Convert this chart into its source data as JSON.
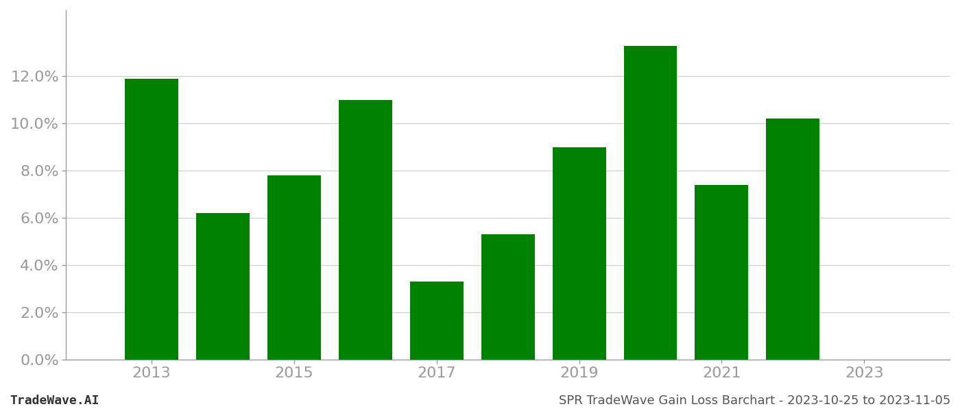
{
  "years": [
    2013,
    2014,
    2015,
    2016,
    2017,
    2018,
    2019,
    2020,
    2021,
    2022
  ],
  "values": [
    0.119,
    0.062,
    0.078,
    0.11,
    0.033,
    0.053,
    0.09,
    0.133,
    0.074,
    0.102
  ],
  "bar_color": "#008000",
  "background_color": "#ffffff",
  "grid_color": "#cccccc",
  "ylim": [
    0,
    0.148
  ],
  "yticks": [
    0.0,
    0.02,
    0.04,
    0.06,
    0.08,
    0.1,
    0.12
  ],
  "xtick_labels": [
    "2013",
    "2015",
    "2017",
    "2019",
    "2021",
    "2023"
  ],
  "xtick_positions": [
    2013,
    2015,
    2017,
    2019,
    2021,
    2023
  ],
  "xlim_left": 2011.8,
  "xlim_right": 2024.2,
  "footer_left": "TradeWave.AI",
  "footer_right": "SPR TradeWave Gain Loss Barchart - 2023-10-25 to 2023-11-05",
  "tick_color": "#999999",
  "tick_fontsize": 16,
  "footer_fontsize": 13,
  "bar_width": 0.75
}
